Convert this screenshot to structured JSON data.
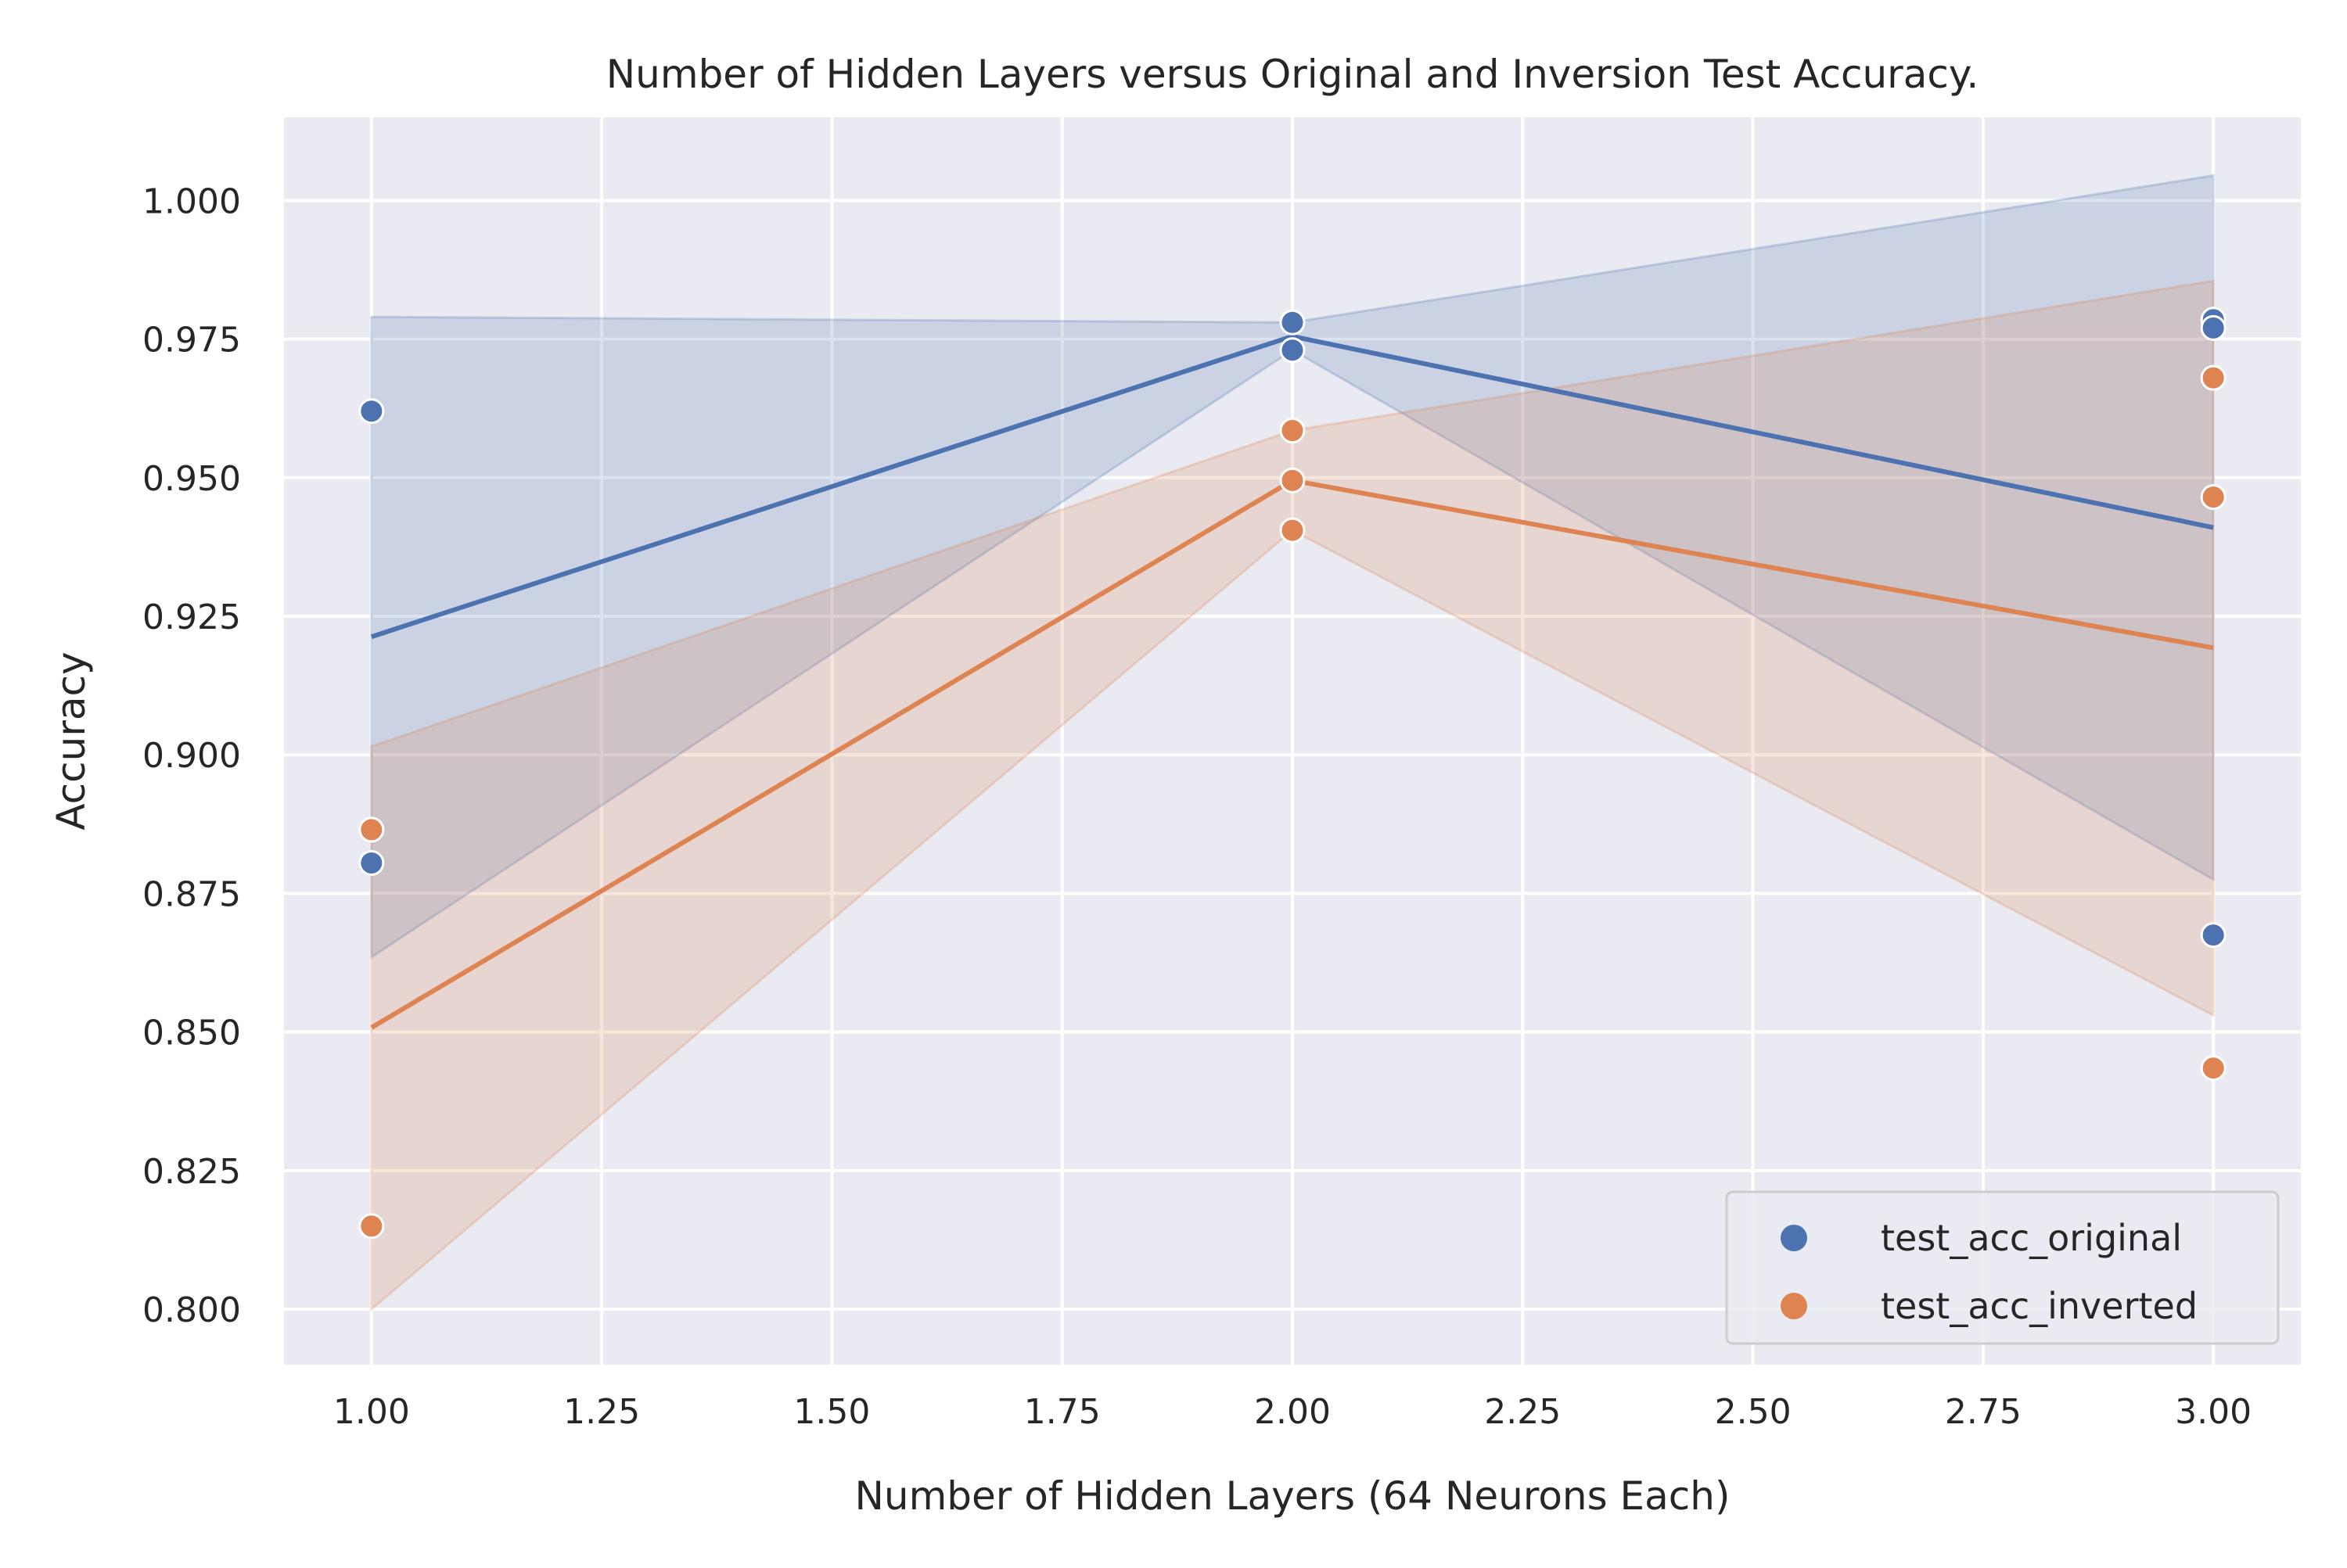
{
  "chart_data": {
    "type": "line",
    "title": "Number of Hidden Layers versus Original and Inversion Test Accuracy.",
    "xlabel": "Number of Hidden Layers (64 Neurons Each)",
    "ylabel": "Accuracy",
    "xlim": [
      0.905,
      3.095
    ],
    "ylim": [
      0.79,
      1.015
    ],
    "x_ticks": [
      1.0,
      1.25,
      1.5,
      1.75,
      2.0,
      2.25,
      2.5,
      2.75,
      3.0
    ],
    "x_tick_labels": [
      "1.00",
      "1.25",
      "1.50",
      "1.75",
      "2.00",
      "2.25",
      "2.50",
      "2.75",
      "3.00"
    ],
    "y_ticks": [
      0.8,
      0.825,
      0.85,
      0.875,
      0.9,
      0.925,
      0.95,
      0.975,
      1.0
    ],
    "y_tick_labels": [
      "0.800",
      "0.825",
      "0.850",
      "0.875",
      "0.900",
      "0.925",
      "0.950",
      "0.975",
      "1.000"
    ],
    "grid": true,
    "legend_position": "bottom-right",
    "series": [
      {
        "name": "test_acc_original",
        "color": "#4c72b0",
        "points": [
          {
            "x": 1.0,
            "y": 0.962
          },
          {
            "x": 1.0,
            "y": 0.8805
          },
          {
            "x": 2.0,
            "y": 0.978
          },
          {
            "x": 2.0,
            "y": 0.973
          },
          {
            "x": 3.0,
            "y": 0.9785
          },
          {
            "x": 3.0,
            "y": 0.977
          },
          {
            "x": 3.0,
            "y": 0.8675
          }
        ],
        "line": [
          {
            "x": 1.0,
            "y": 0.9213
          },
          {
            "x": 2.0,
            "y": 0.9755
          },
          {
            "x": 3.0,
            "y": 0.941
          }
        ],
        "band": [
          {
            "x": 1.0,
            "lo": 0.8635,
            "hi": 0.979
          },
          {
            "x": 2.0,
            "lo": 0.973,
            "hi": 0.978
          },
          {
            "x": 3.0,
            "lo": 0.8775,
            "hi": 1.0045
          }
        ]
      },
      {
        "name": "test_acc_inverted",
        "color": "#dd8452",
        "points": [
          {
            "x": 1.0,
            "y": 0.8865
          },
          {
            "x": 1.0,
            "y": 0.815
          },
          {
            "x": 2.0,
            "y": 0.9585
          },
          {
            "x": 2.0,
            "y": 0.9495
          },
          {
            "x": 2.0,
            "y": 0.9405
          },
          {
            "x": 3.0,
            "y": 0.968
          },
          {
            "x": 3.0,
            "y": 0.9465
          },
          {
            "x": 3.0,
            "y": 0.8435
          }
        ],
        "line": [
          {
            "x": 1.0,
            "y": 0.8508
          },
          {
            "x": 2.0,
            "y": 0.9495
          },
          {
            "x": 3.0,
            "y": 0.9193
          }
        ],
        "band": [
          {
            "x": 1.0,
            "lo": 0.8,
            "hi": 0.9015
          },
          {
            "x": 2.0,
            "lo": 0.9405,
            "hi": 0.9585
          },
          {
            "x": 3.0,
            "lo": 0.853,
            "hi": 0.9855
          }
        ]
      }
    ]
  }
}
